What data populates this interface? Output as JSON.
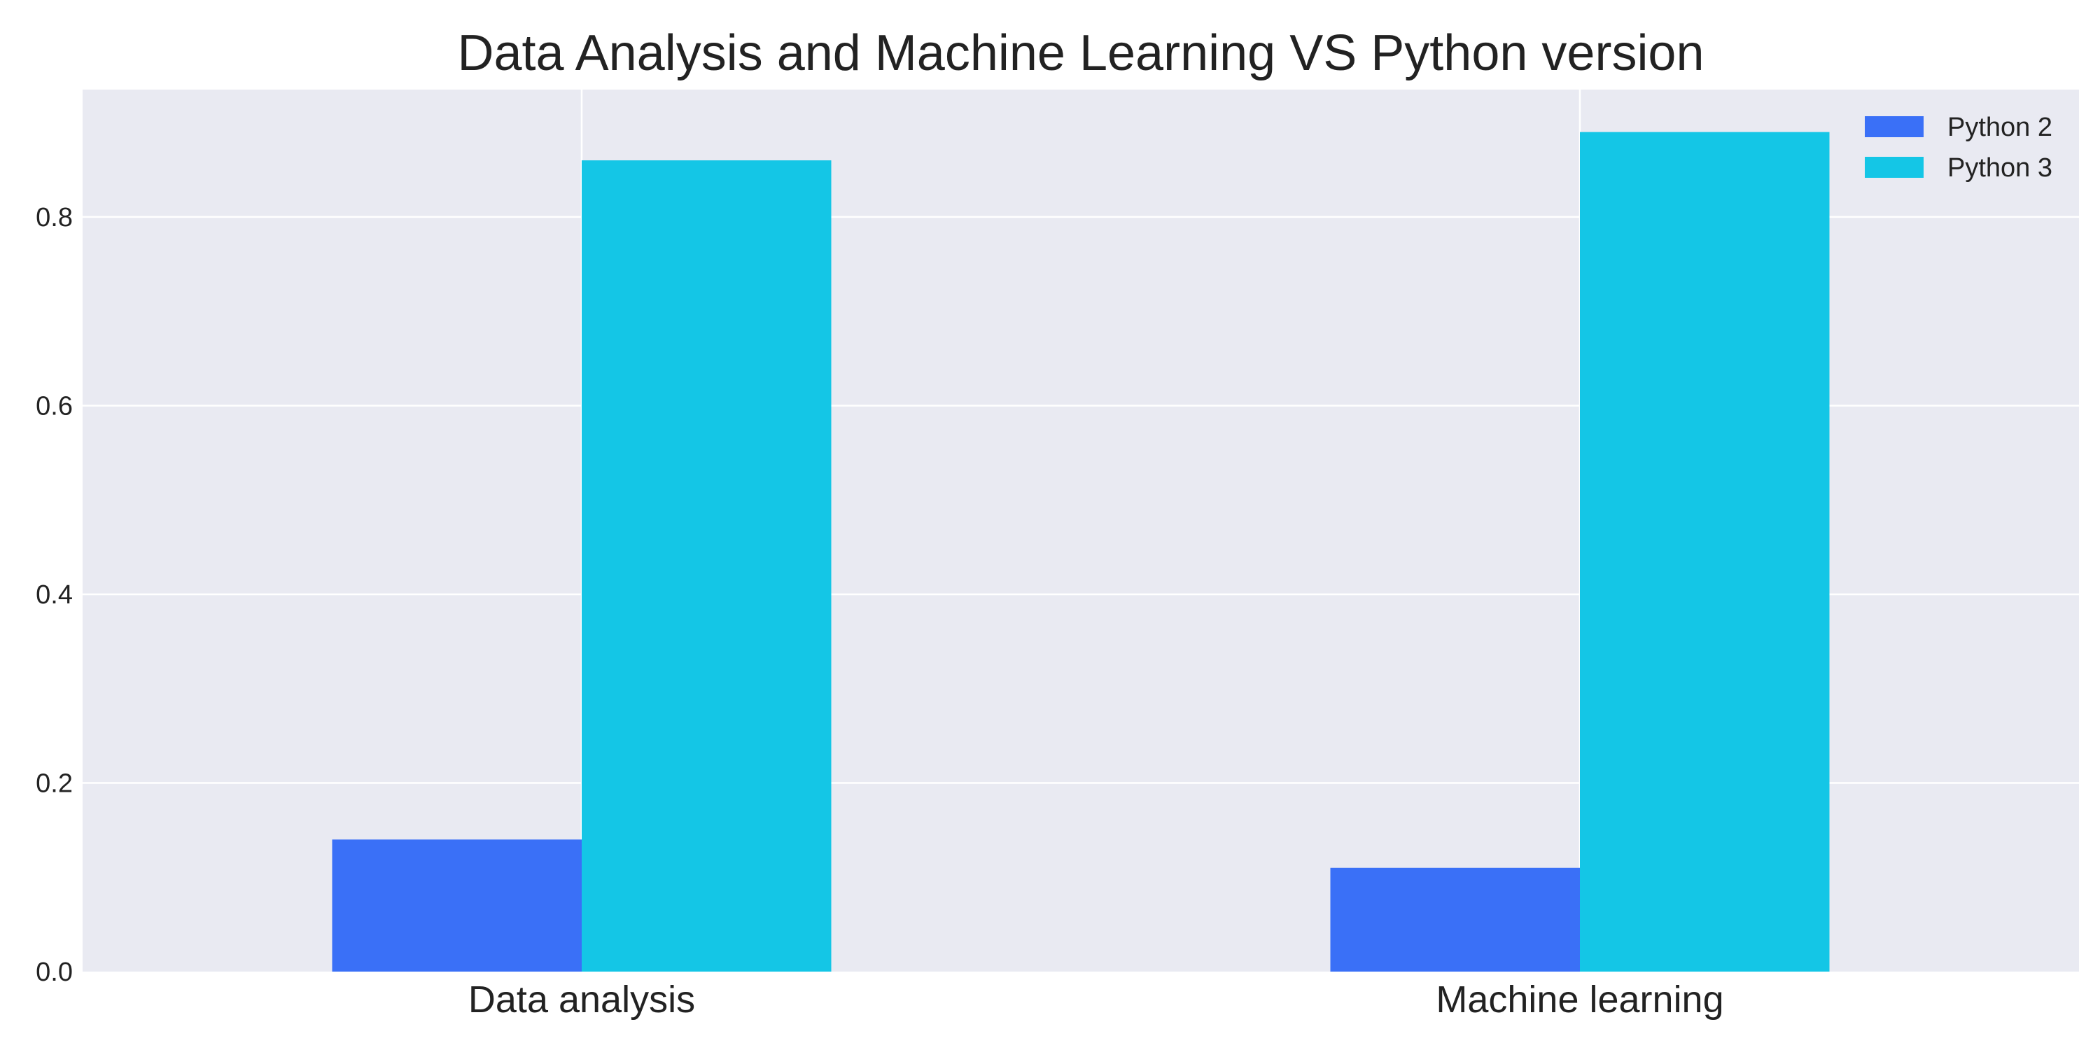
{
  "chart_data": {
    "type": "bar",
    "title": "Data Analysis and Machine Learning VS Python version",
    "xlabel": "",
    "ylabel": "",
    "categories": [
      "Data analysis",
      "Machine learning"
    ],
    "series": [
      {
        "name": "Python 2",
        "values": [
          0.14,
          0.11
        ],
        "color": "#3a70f7"
      },
      {
        "name": "Python 3",
        "values": [
          0.86,
          0.89
        ],
        "color": "#14c6e6"
      }
    ],
    "ylim": [
      0,
      0.935
    ],
    "yticks": [
      0.0,
      0.2,
      0.4,
      0.6,
      0.8
    ],
    "ytick_labels": [
      "0.0",
      "0.2",
      "0.4",
      "0.6",
      "0.8"
    ],
    "grid": true,
    "legend_position": "top-right",
    "background_color": "#e9eaf2",
    "grid_color": "#ffffff"
  }
}
